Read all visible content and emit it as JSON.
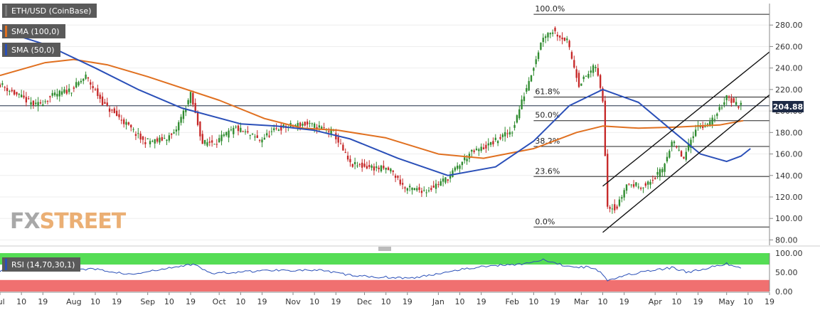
{
  "legend": {
    "symbol": "ETH/USD (CoinBase)",
    "sma100": "SMA (100,0)",
    "sma50": "SMA (50,0)",
    "rsi": "RSI (14,70,30,1)"
  },
  "colors": {
    "bull": "#2e8b2e",
    "bear": "#c62828",
    "sma100": "#e07020",
    "sma50": "#2a4fb8",
    "channel": "#111111",
    "fib": "#222222",
    "rsi_line": "#2a4fb8",
    "rsi_over": "#55dd55",
    "rsi_under": "#f07070",
    "tag_bg": "#1e2b46"
  },
  "logo": {
    "fx": "FX",
    "street": "STREET"
  },
  "current_price": "204.88",
  "chart_data": {
    "type": "candlestick",
    "title": "ETH/USD (CoinBase)",
    "y_axis": {
      "ylim": [
        75,
        300
      ],
      "ticks": [
        80,
        100,
        120,
        140,
        160,
        180,
        200,
        220,
        240,
        260,
        280
      ]
    },
    "rsi_axis": {
      "ticks": [
        0,
        50,
        100
      ],
      "labels": [
        "0.00",
        "50.00",
        "100.00"
      ],
      "overbought": 70,
      "oversold": 30
    },
    "x_axis": {
      "start": "2019-07-01",
      "end": "2020-05-19",
      "ticks": [
        {
          "date": "2019-07-01",
          "label": "Jul"
        },
        {
          "date": "2019-07-10",
          "label": "10"
        },
        {
          "date": "2019-07-19",
          "label": "19"
        },
        {
          "date": "2019-08-01",
          "label": "Aug"
        },
        {
          "date": "2019-08-10",
          "label": "10"
        },
        {
          "date": "2019-08-19",
          "label": "19"
        },
        {
          "date": "2019-09-01",
          "label": "Sep"
        },
        {
          "date": "2019-09-10",
          "label": "10"
        },
        {
          "date": "2019-09-19",
          "label": "19"
        },
        {
          "date": "2019-10-01",
          "label": "Oct"
        },
        {
          "date": "2019-10-10",
          "label": "10"
        },
        {
          "date": "2019-10-19",
          "label": "19"
        },
        {
          "date": "2019-11-01",
          "label": "Nov"
        },
        {
          "date": "2019-11-10",
          "label": "10"
        },
        {
          "date": "2019-11-19",
          "label": "19"
        },
        {
          "date": "2019-12-01",
          "label": "Dec"
        },
        {
          "date": "2019-12-10",
          "label": "10"
        },
        {
          "date": "2019-12-19",
          "label": "19"
        },
        {
          "date": "2020-01-01",
          "label": "Jan"
        },
        {
          "date": "2020-01-10",
          "label": "10"
        },
        {
          "date": "2020-01-19",
          "label": "19"
        },
        {
          "date": "2020-02-01",
          "label": "Feb"
        },
        {
          "date": "2020-02-10",
          "label": "10"
        },
        {
          "date": "2020-02-19",
          "label": "19"
        },
        {
          "date": "2020-03-01",
          "label": "Mar"
        },
        {
          "date": "2020-03-10",
          "label": "10"
        },
        {
          "date": "2020-03-19",
          "label": "19"
        },
        {
          "date": "2020-04-01",
          "label": "Apr"
        },
        {
          "date": "2020-04-10",
          "label": "10"
        },
        {
          "date": "2020-04-19",
          "label": "19"
        },
        {
          "date": "2020-05-01",
          "label": "May"
        },
        {
          "date": "2020-05-10",
          "label": "10"
        },
        {
          "date": "2020-05-19",
          "label": "19"
        }
      ]
    },
    "price_path": [
      [
        "2019-07-01",
        225
      ],
      [
        "2019-07-08",
        215
      ],
      [
        "2019-07-16",
        205
      ],
      [
        "2019-07-24",
        215
      ],
      [
        "2019-07-31",
        220
      ],
      [
        "2019-08-06",
        232
      ],
      [
        "2019-08-14",
        205
      ],
      [
        "2019-08-22",
        190
      ],
      [
        "2019-08-30",
        172
      ],
      [
        "2019-09-05",
        172
      ],
      [
        "2019-09-12",
        178
      ],
      [
        "2019-09-19",
        215
      ],
      [
        "2019-09-24",
        170
      ],
      [
        "2019-09-30",
        172
      ],
      [
        "2019-10-08",
        184
      ],
      [
        "2019-10-18",
        173
      ],
      [
        "2019-10-26",
        184
      ],
      [
        "2019-11-05",
        188
      ],
      [
        "2019-11-12",
        185
      ],
      [
        "2019-11-18",
        180
      ],
      [
        "2019-11-25",
        150
      ],
      [
        "2019-12-03",
        148
      ],
      [
        "2019-12-12",
        145
      ],
      [
        "2019-12-18",
        128
      ],
      [
        "2019-12-27",
        126
      ],
      [
        "2020-01-05",
        138
      ],
      [
        "2020-01-14",
        160
      ],
      [
        "2020-01-22",
        168
      ],
      [
        "2020-02-01",
        182
      ],
      [
        "2020-02-07",
        222
      ],
      [
        "2020-02-14",
        270
      ],
      [
        "2020-02-18",
        275
      ],
      [
        "2020-02-24",
        265
      ],
      [
        "2020-02-29",
        225
      ],
      [
        "2020-03-07",
        242
      ],
      [
        "2020-03-10",
        210
      ],
      [
        "2020-03-12",
        112
      ],
      [
        "2020-03-16",
        110
      ],
      [
        "2020-03-20",
        132
      ],
      [
        "2020-03-28",
        130
      ],
      [
        "2020-04-04",
        145
      ],
      [
        "2020-04-08",
        172
      ],
      [
        "2020-04-13",
        155
      ],
      [
        "2020-04-18",
        185
      ],
      [
        "2020-04-24",
        188
      ],
      [
        "2020-04-29",
        205
      ],
      [
        "2020-05-01",
        215
      ],
      [
        "2020-05-04",
        207
      ],
      [
        "2020-05-07",
        204.88
      ]
    ],
    "series": [
      {
        "name": "SMA (100,0)",
        "points": [
          [
            "2019-07-01",
            233
          ],
          [
            "2019-07-20",
            245
          ],
          [
            "2019-08-01",
            248
          ],
          [
            "2019-08-15",
            243
          ],
          [
            "2019-09-01",
            232
          ],
          [
            "2019-10-01",
            210
          ],
          [
            "2019-10-20",
            193
          ],
          [
            "2019-11-05",
            184
          ],
          [
            "2019-11-20",
            182
          ],
          [
            "2019-12-10",
            175
          ],
          [
            "2020-01-01",
            160
          ],
          [
            "2020-01-20",
            156
          ],
          [
            "2020-02-10",
            165
          ],
          [
            "2020-02-28",
            180
          ],
          [
            "2020-03-10",
            186
          ],
          [
            "2020-03-25",
            184
          ],
          [
            "2020-04-10",
            185
          ],
          [
            "2020-04-28",
            187
          ],
          [
            "2020-05-08",
            191
          ]
        ]
      },
      {
        "name": "SMA (50,0)",
        "points": [
          [
            "2019-07-01",
            275
          ],
          [
            "2019-07-20",
            262
          ],
          [
            "2019-08-10",
            240
          ],
          [
            "2019-08-28",
            220
          ],
          [
            "2019-09-15",
            203
          ],
          [
            "2019-10-10",
            188
          ],
          [
            "2019-10-25",
            186
          ],
          [
            "2019-11-10",
            182
          ],
          [
            "2019-11-25",
            174
          ],
          [
            "2019-12-15",
            156
          ],
          [
            "2020-01-05",
            140
          ],
          [
            "2020-01-25",
            148
          ],
          [
            "2020-02-10",
            172
          ],
          [
            "2020-02-25",
            205
          ],
          [
            "2020-03-10",
            220
          ],
          [
            "2020-03-25",
            208
          ],
          [
            "2020-04-08",
            182
          ],
          [
            "2020-04-20",
            160
          ],
          [
            "2020-05-01",
            153
          ],
          [
            "2020-05-07",
            158
          ],
          [
            "2020-05-11",
            165
          ]
        ]
      }
    ],
    "fibonacci": [
      {
        "label": "100.0%",
        "value": 290
      },
      {
        "label": "61.8%",
        "value": 213
      },
      {
        "label": "50.0%",
        "value": 191
      },
      {
        "label": "38.2%",
        "value": 167
      },
      {
        "label": "23.6%",
        "value": 139
      },
      {
        "label": "0.0%",
        "value": 92
      }
    ],
    "channel": [
      {
        "from": [
          "2020-03-10",
          130
        ],
        "to": [
          "2020-05-19",
          255
        ]
      },
      {
        "from": [
          "2020-03-10",
          87
        ],
        "to": [
          "2020-05-19",
          215
        ]
      }
    ],
    "rsi_path": [
      [
        "2019-07-01",
        55
      ],
      [
        "2019-08-10",
        58
      ],
      [
        "2019-08-25",
        44
      ],
      [
        "2019-09-21",
        72
      ],
      [
        "2019-09-27",
        47
      ],
      [
        "2019-10-25",
        56
      ],
      [
        "2019-11-12",
        55
      ],
      [
        "2019-11-28",
        40
      ],
      [
        "2019-12-22",
        35
      ],
      [
        "2020-01-10",
        58
      ],
      [
        "2020-01-25",
        68
      ],
      [
        "2020-02-05",
        72
      ],
      [
        "2020-02-14",
        82
      ],
      [
        "2020-02-24",
        66
      ],
      [
        "2020-03-07",
        62
      ],
      [
        "2020-03-12",
        30
      ],
      [
        "2020-03-20",
        44
      ],
      [
        "2020-04-08",
        62
      ],
      [
        "2020-04-15",
        50
      ],
      [
        "2020-04-25",
        64
      ],
      [
        "2020-05-01",
        72
      ],
      [
        "2020-05-07",
        60
      ]
    ]
  }
}
